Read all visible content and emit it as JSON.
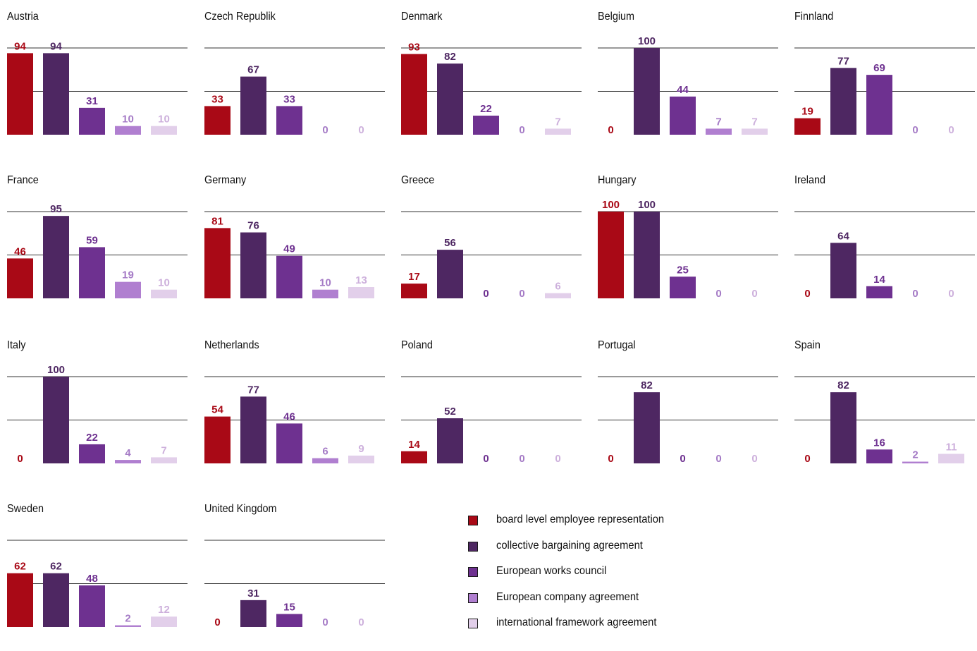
{
  "chart_data": {
    "type": "bar",
    "series_names": [
      "board level employee representation",
      "collective bargaining agreement",
      "European works council",
      "European company agreement",
      "international framework agreement"
    ],
    "series_colors": [
      "#a90916",
      "#4e2762",
      "#6e3190",
      "#b07fd0",
      "#e2cfea"
    ],
    "label_colors": [
      "#a90916",
      "#4e2762",
      "#6e3190",
      "#a57bc6",
      "#cdb0dc"
    ],
    "ylim": [
      0,
      100
    ],
    "gridlines": [
      50,
      100
    ],
    "panels": [
      {
        "title": "Austria",
        "values": [
          94,
          94,
          31,
          10,
          10
        ]
      },
      {
        "title": "Czech Republik",
        "values": [
          33,
          67,
          33,
          0,
          0
        ]
      },
      {
        "title": "Denmark",
        "values": [
          93,
          82,
          22,
          0,
          7
        ]
      },
      {
        "title": "Belgium",
        "values": [
          0,
          100,
          44,
          7,
          7
        ]
      },
      {
        "title": "Finnland",
        "values": [
          19,
          77,
          69,
          0,
          0
        ]
      },
      {
        "title": "France",
        "values": [
          46,
          95,
          59,
          19,
          10
        ]
      },
      {
        "title": "Germany",
        "values": [
          81,
          76,
          49,
          10,
          13
        ]
      },
      {
        "title": "Greece",
        "values": [
          17,
          56,
          0,
          0,
          6
        ]
      },
      {
        "title": "Hungary",
        "values": [
          100,
          100,
          25,
          0,
          0
        ]
      },
      {
        "title": "Ireland",
        "values": [
          0,
          64,
          14,
          0,
          0
        ]
      },
      {
        "title": "Italy",
        "values": [
          0,
          100,
          22,
          4,
          7
        ]
      },
      {
        "title": "Netherlands",
        "values": [
          54,
          77,
          46,
          6,
          9
        ]
      },
      {
        "title": "Poland",
        "values": [
          14,
          52,
          0,
          0,
          0
        ]
      },
      {
        "title": "Portugal",
        "values": [
          0,
          82,
          0,
          0,
          0
        ]
      },
      {
        "title": "Spain",
        "values": [
          0,
          82,
          16,
          2,
          11
        ]
      },
      {
        "title": "Sweden",
        "values": [
          62,
          62,
          48,
          2,
          12
        ]
      },
      {
        "title": "United Kingdom",
        "values": [
          0,
          31,
          15,
          0,
          0
        ]
      }
    ]
  },
  "legend": {
    "items": [
      {
        "label": "board level employee representation",
        "color": "#a90916"
      },
      {
        "label": "collective bargaining agreement",
        "color": "#4e2762"
      },
      {
        "label": "European works council",
        "color": "#6e3190"
      },
      {
        "label": "European company agreement",
        "color": "#b07fd0"
      },
      {
        "label": "international framework agreement",
        "color": "#e2cfea"
      }
    ]
  }
}
